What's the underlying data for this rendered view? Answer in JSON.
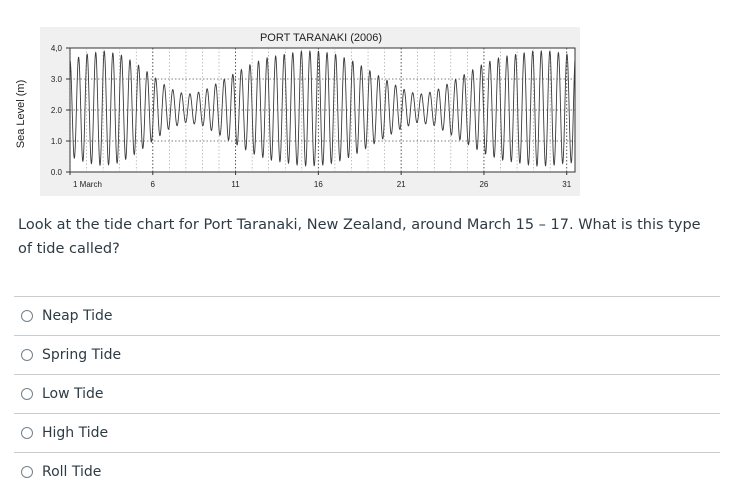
{
  "chart_data": {
    "type": "line",
    "title": "PORT TARANAKI (2006)",
    "ylabel": "Sea Level (m)",
    "xlabel": "",
    "ylim": [
      0.0,
      4.0
    ],
    "xlim": [
      1,
      31.5
    ],
    "y_ticks": [
      "0.0",
      "1.0",
      "2.0",
      "3.0",
      "4,0"
    ],
    "y_tick_values": [
      0.0,
      1.0,
      2.0,
      3.0,
      4.0
    ],
    "x_ticks": [
      "1 March",
      "6",
      "11",
      "16",
      "21",
      "26",
      "31"
    ],
    "x_tick_values": [
      1,
      6,
      11,
      16,
      21,
      26,
      31
    ],
    "grid": true,
    "series": [
      {
        "tidal_period_days": 0.5175,
        "daily_extremes": [
          {
            "day": 1,
            "high": 3.6,
            "low": 0.5
          },
          {
            "day": 2,
            "high": 3.8,
            "low": 0.3
          },
          {
            "day": 3,
            "high": 3.9,
            "low": 0.2
          },
          {
            "day": 4,
            "high": 3.8,
            "low": 0.3
          },
          {
            "day": 5,
            "high": 3.5,
            "low": 0.6
          },
          {
            "day": 6,
            "high": 3.1,
            "low": 1.0
          },
          {
            "day": 7,
            "high": 2.7,
            "low": 1.4
          },
          {
            "day": 8,
            "high": 2.5,
            "low": 1.6
          },
          {
            "day": 9,
            "high": 2.6,
            "low": 1.5
          },
          {
            "day": 10,
            "high": 2.9,
            "low": 1.2
          },
          {
            "day": 11,
            "high": 3.2,
            "low": 0.9
          },
          {
            "day": 12,
            "high": 3.5,
            "low": 0.6
          },
          {
            "day": 13,
            "high": 3.7,
            "low": 0.4
          },
          {
            "day": 14,
            "high": 3.8,
            "low": 0.3
          },
          {
            "day": 15,
            "high": 3.9,
            "low": 0.2
          },
          {
            "day": 16,
            "high": 3.9,
            "low": 0.2
          },
          {
            "day": 17,
            "high": 3.8,
            "low": 0.3
          },
          {
            "day": 18,
            "high": 3.6,
            "low": 0.5
          },
          {
            "day": 19,
            "high": 3.3,
            "low": 0.8
          },
          {
            "day": 20,
            "high": 3.0,
            "low": 1.1
          },
          {
            "day": 21,
            "high": 2.7,
            "low": 1.4
          },
          {
            "day": 22,
            "high": 2.5,
            "low": 1.6
          },
          {
            "day": 23,
            "high": 2.6,
            "low": 1.5
          },
          {
            "day": 24,
            "high": 2.9,
            "low": 1.2
          },
          {
            "day": 25,
            "high": 3.2,
            "low": 0.9
          },
          {
            "day": 26,
            "high": 3.5,
            "low": 0.6
          },
          {
            "day": 27,
            "high": 3.7,
            "low": 0.4
          },
          {
            "day": 28,
            "high": 3.8,
            "low": 0.3
          },
          {
            "day": 29,
            "high": 3.9,
            "low": 0.2
          },
          {
            "day": 30,
            "high": 3.9,
            "low": 0.2
          },
          {
            "day": 31,
            "high": 3.8,
            "low": 0.3
          }
        ]
      }
    ]
  },
  "question": {
    "text": "Look at the tide chart for Port Taranaki, New Zealand, around March 15 – 17.  What is this type of tide called?"
  },
  "choices": [
    {
      "label": "Neap Tide",
      "selected": false
    },
    {
      "label": "Spring Tide",
      "selected": false
    },
    {
      "label": "Low Tide",
      "selected": false
    },
    {
      "label": "High Tide",
      "selected": false
    },
    {
      "label": "Roll Tide",
      "selected": false
    }
  ],
  "colors": {
    "plot_bg": "#f2f2f2",
    "plot_inner_bg": "#ffffff",
    "line": "#3a3a3a",
    "grid": "#555555",
    "text": "#2d3b45",
    "divider": "#c7cdd1"
  }
}
